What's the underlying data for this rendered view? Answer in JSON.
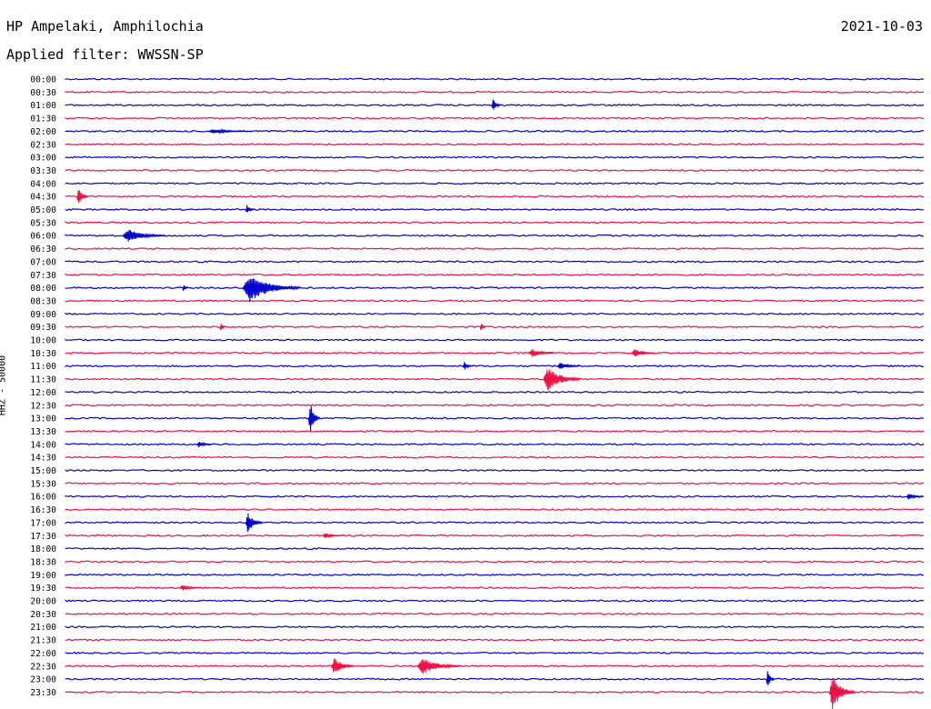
{
  "header": {
    "station": "HP Ampelaki, Amphilochia",
    "date": "2021-10-03",
    "filter": "Applied filter: WWSSN-SP"
  },
  "axis": {
    "ylabel": "HHZ - 50000"
  },
  "chart_data": {
    "type": "line",
    "ylabel": "HHZ - 50000",
    "row_times": [
      "00:00",
      "00:30",
      "01:00",
      "01:30",
      "02:00",
      "02:30",
      "03:00",
      "03:30",
      "04:00",
      "04:30",
      "05:00",
      "05:30",
      "06:00",
      "06:30",
      "07:00",
      "07:30",
      "08:00",
      "08:30",
      "09:00",
      "09:30",
      "10:00",
      "10:30",
      "11:00",
      "11:30",
      "12:00",
      "12:30",
      "13:00",
      "13:30",
      "14:00",
      "14:30",
      "15:00",
      "15:30",
      "16:00",
      "16:30",
      "17:00",
      "17:30",
      "18:00",
      "18:30",
      "19:00",
      "19:30",
      "20:00",
      "20:30",
      "21:00",
      "21:30",
      "22:00",
      "22:30",
      "23:00",
      "23:30"
    ],
    "colors": [
      "#0000cc",
      "#ee1144"
    ],
    "x_unit": "minutes past row start",
    "x_range": [
      0,
      30
    ],
    "events": [
      {
        "row": "01:00",
        "min": 14.9,
        "amp": 0.8,
        "dur": 0.3
      },
      {
        "row": "02:00",
        "min": 5.0,
        "amp": 0.25,
        "dur": 1.5
      },
      {
        "row": "04:30",
        "min": 0.4,
        "amp": 0.9,
        "dur": 0.4
      },
      {
        "row": "05:00",
        "min": 6.3,
        "amp": 0.5,
        "dur": 0.3
      },
      {
        "row": "06:00",
        "min": 2.0,
        "amp": 0.7,
        "dur": 1.5
      },
      {
        "row": "08:00",
        "min": 6.2,
        "amp": 1.5,
        "dur": 2.0
      },
      {
        "row": "08:00",
        "min": 4.1,
        "amp": 0.35,
        "dur": 0.2
      },
      {
        "row": "09:30",
        "min": 5.4,
        "amp": 0.5,
        "dur": 0.2
      },
      {
        "row": "09:30",
        "min": 14.5,
        "amp": 0.5,
        "dur": 0.2
      },
      {
        "row": "10:30",
        "min": 16.2,
        "amp": 0.45,
        "dur": 0.9
      },
      {
        "row": "10:30",
        "min": 19.8,
        "amp": 0.45,
        "dur": 0.8
      },
      {
        "row": "11:00",
        "min": 13.9,
        "amp": 0.5,
        "dur": 0.3
      },
      {
        "row": "11:00",
        "min": 17.2,
        "amp": 0.4,
        "dur": 0.8
      },
      {
        "row": "11:30",
        "min": 16.7,
        "amp": 1.3,
        "dur": 1.3
      },
      {
        "row": "13:00",
        "min": 8.5,
        "amp": 1.8,
        "dur": 0.4
      },
      {
        "row": "14:00",
        "min": 4.6,
        "amp": 0.35,
        "dur": 0.5
      },
      {
        "row": "16:00",
        "min": 29.4,
        "amp": 0.35,
        "dur": 0.6
      },
      {
        "row": "17:00",
        "min": 6.3,
        "amp": 1.1,
        "dur": 0.6
      },
      {
        "row": "17:30",
        "min": 9.0,
        "amp": 0.3,
        "dur": 0.7
      },
      {
        "row": "19:30",
        "min": 4.0,
        "amp": 0.3,
        "dur": 0.8
      },
      {
        "row": "22:30",
        "min": 9.3,
        "amp": 0.9,
        "dur": 0.8
      },
      {
        "row": "22:30",
        "min": 12.3,
        "amp": 0.9,
        "dur": 1.5
      },
      {
        "row": "23:00",
        "min": 24.5,
        "amp": 0.9,
        "dur": 0.3
      },
      {
        "row": "23:30",
        "min": 26.7,
        "amp": 1.8,
        "dur": 0.9
      }
    ]
  }
}
